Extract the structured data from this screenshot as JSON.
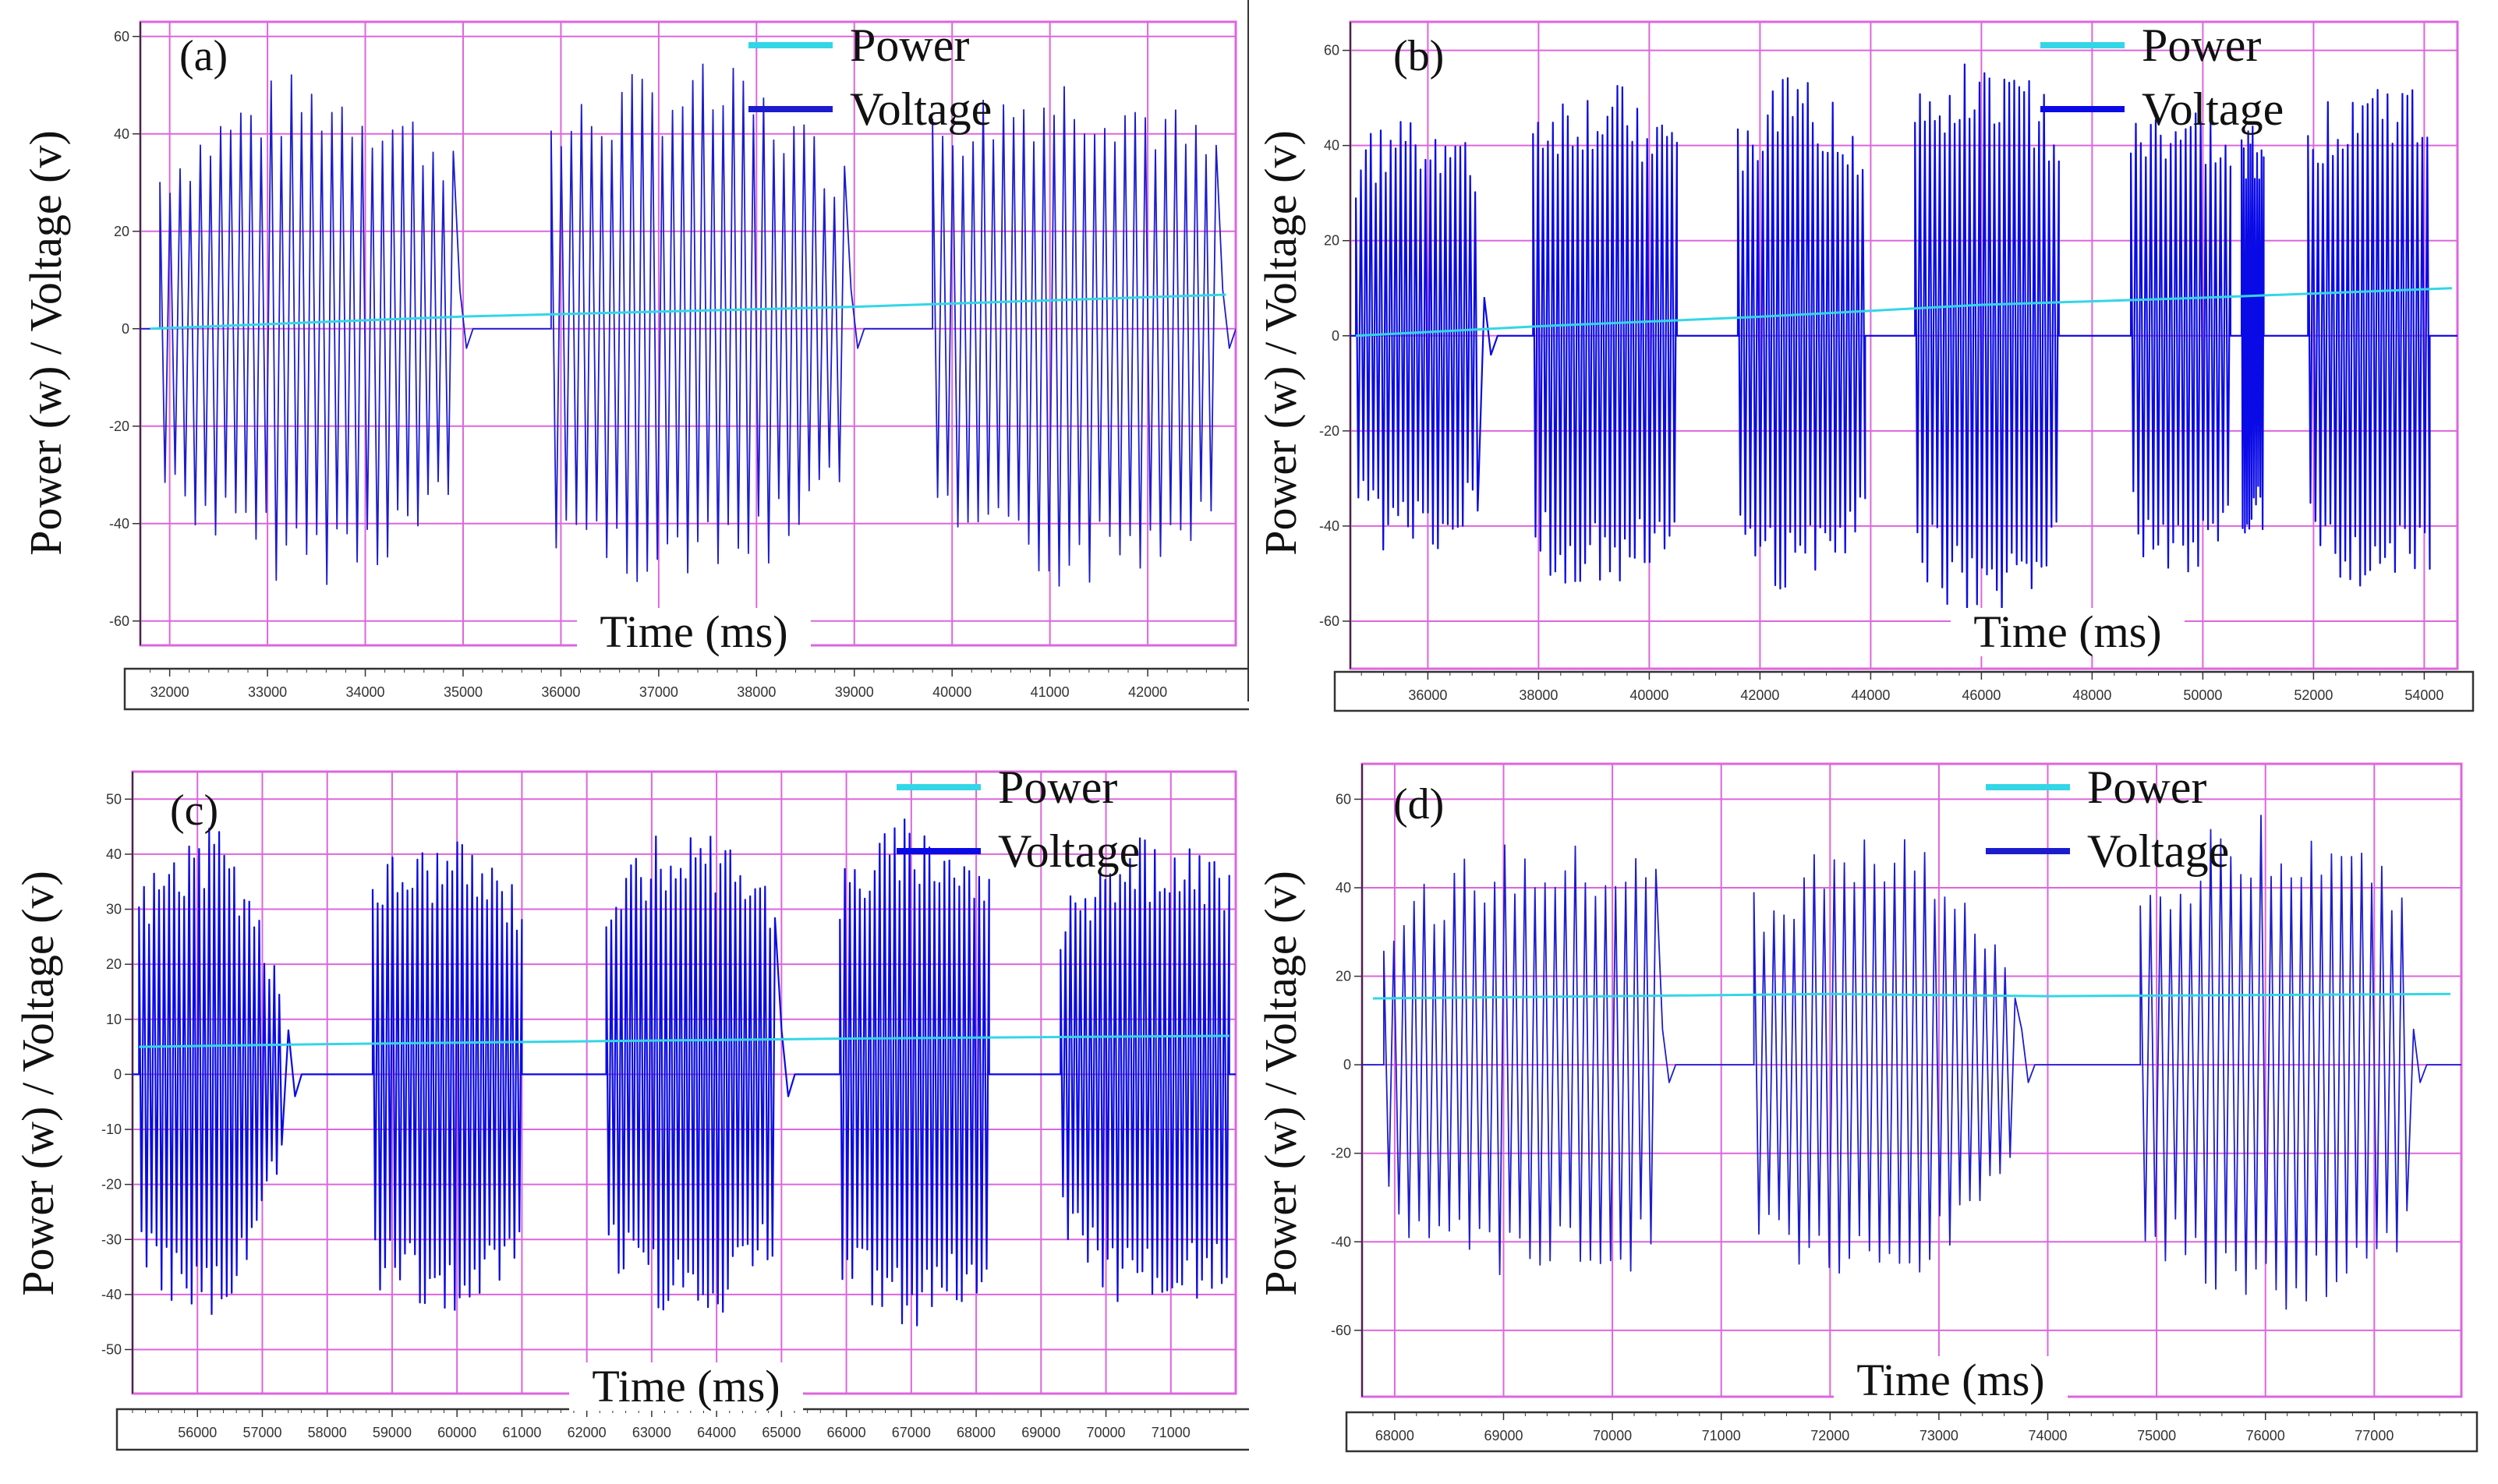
{
  "colors": {
    "power": "#33d6e6",
    "voltage": "#1c1ccf",
    "voltage_dense": "#0a0ae6",
    "grid": "#dd66dd",
    "frame": "#333333"
  },
  "chart_data": [
    {
      "type": "line",
      "panel_label": "(a)",
      "xlabel": "Time (ms)",
      "ylabel": "Power (w) / Voltage (v)",
      "xlim": [
        31700,
        42900
      ],
      "ylim": [
        -65,
        63
      ],
      "xticks": [
        32000,
        33000,
        34000,
        35000,
        36000,
        37000,
        38000,
        39000,
        40000,
        41000,
        42000
      ],
      "xtick_labels": [
        "32000",
        "33000",
        "34000",
        "35000",
        "36000",
        "37000",
        "38000",
        "39000",
        "40000",
        "41000",
        "42000"
      ],
      "yticks": [
        -60,
        -40,
        -20,
        0,
        20,
        40,
        60
      ],
      "ytick_labels": [
        "-60",
        "-40",
        "-20",
        "0",
        "20",
        "40",
        "60"
      ],
      "legend": [
        "Power",
        "Voltage"
      ],
      "series": [
        {
          "name": "Power",
          "x": [
            31800,
            35000,
            36000,
            39000,
            42800
          ],
          "values": [
            0,
            2.5,
            3,
            4.5,
            7
          ]
        },
        {
          "name": "Voltage",
          "bursts": [
            {
              "start": 31900,
              "end": 34900,
              "amp_start": 35,
              "amp_peak": 53,
              "amp_end": 40,
              "tail": "ring"
            },
            {
              "start": 35900,
              "end": 38900,
              "amp_start": 45,
              "amp_peak": 55,
              "amp_end": 35,
              "tail": "ring"
            },
            {
              "start": 39800,
              "end": 42700,
              "amp_start": 45,
              "amp_peak": 54,
              "amp_end": 40,
              "tail": "ring"
            }
          ]
        }
      ]
    },
    {
      "type": "line",
      "panel_label": "(b)",
      "xlabel": "Time (ms)",
      "ylabel": "Power (w) / Voltage (v)",
      "xlim": [
        34600,
        54600
      ],
      "ylim": [
        -70,
        66
      ],
      "xticks": [
        36000,
        38000,
        40000,
        42000,
        44000,
        46000,
        48000,
        50000,
        52000,
        54000
      ],
      "xtick_labels": [
        "36000",
        "38000",
        "40000",
        "42000",
        "44000",
        "46000",
        "48000",
        "50000",
        "52000",
        "54000"
      ],
      "yticks": [
        -60,
        -40,
        -20,
        0,
        20,
        40,
        60
      ],
      "ytick_labels": [
        "-60",
        "-40",
        "-20",
        "0",
        "20",
        "40",
        "60"
      ],
      "legend": [
        "Power",
        "Voltage"
      ],
      "series": [
        {
          "name": "Power",
          "x": [
            34700,
            38000,
            42000,
            46000,
            50000,
            54500
          ],
          "values": [
            0,
            2,
            4,
            6.5,
            8,
            10
          ]
        },
        {
          "name": "Voltage",
          "dense": true,
          "bursts": [
            {
              "start": 34700,
              "end": 36900,
              "amp_start": 40,
              "amp_peak": 48,
              "amp_end": 38,
              "tail": "ring"
            },
            {
              "start": 37900,
              "end": 40500,
              "amp_start": 50,
              "amp_peak": 53,
              "amp_end": 45,
              "tail": "flat"
            },
            {
              "start": 41600,
              "end": 43900,
              "amp_start": 45,
              "amp_peak": 55,
              "amp_end": 45,
              "tail": "flat"
            },
            {
              "start": 44800,
              "end": 47400,
              "amp_start": 50,
              "amp_peak": 61,
              "amp_end": 48,
              "tail": "flat"
            },
            {
              "start": 48700,
              "end": 50500,
              "amp_start": 45,
              "amp_peak": 50,
              "amp_end": 42,
              "tail": "flat"
            },
            {
              "start": 50700,
              "end": 51100,
              "amp_start": 42,
              "amp_peak": 45,
              "amp_end": 40,
              "tail": "flat"
            },
            {
              "start": 51900,
              "end": 54100,
              "amp_start": 45,
              "amp_peak": 56,
              "amp_end": 50,
              "tail": "flat"
            }
          ]
        }
      ]
    },
    {
      "type": "line",
      "panel_label": "(c)",
      "xlabel": "Time (ms)",
      "ylabel": "Power (w) / Voltage (v)",
      "xlim": [
        55000,
        72000
      ],
      "ylim": [
        -58,
        55
      ],
      "xticks": [
        56000,
        57000,
        58000,
        59000,
        60000,
        61000,
        62000,
        63000,
        64000,
        65000,
        66000,
        67000,
        68000,
        69000,
        70000,
        71000
      ],
      "xtick_labels": [
        "56000",
        "57000",
        "58000",
        "59000",
        "60000",
        "61000",
        "62000",
        "63000",
        "64000",
        "65000",
        "66000",
        "67000",
        "68000",
        "69000",
        "70000",
        "71000"
      ],
      "yticks": [
        -50,
        -40,
        -30,
        -20,
        -10,
        0,
        10,
        20,
        30,
        40,
        50
      ],
      "ytick_labels": [
        "-50",
        "-40",
        "-30",
        "-20",
        "-10",
        "0",
        "10",
        "20",
        "30",
        "40",
        "50"
      ],
      "legend": [
        "Power",
        "Voltage"
      ],
      "series": [
        {
          "name": "Power",
          "x": [
            55100,
            58000,
            62000,
            66000,
            71900
          ],
          "values": [
            5,
            5.5,
            6,
            6.5,
            7
          ]
        },
        {
          "name": "Voltage",
          "dense": true,
          "bursts": [
            {
              "start": 55100,
              "end": 57300,
              "amp_start": 35,
              "amp_peak": 45,
              "amp_end": 15,
              "tail": "ring"
            },
            {
              "start": 58700,
              "end": 61000,
              "amp_start": 40,
              "amp_peak": 43,
              "amp_end": 35,
              "tail": "flat"
            },
            {
              "start": 62300,
              "end": 64900,
              "amp_start": 35,
              "amp_peak": 46,
              "amp_end": 35,
              "tail": "ring"
            },
            {
              "start": 65900,
              "end": 68200,
              "amp_start": 38,
              "amp_peak": 47,
              "amp_end": 38,
              "tail": "flat"
            },
            {
              "start": 69300,
              "end": 71900,
              "amp_start": 30,
              "amp_peak": 43,
              "amp_end": 38,
              "tail": "flat"
            }
          ]
        }
      ]
    },
    {
      "type": "line",
      "panel_label": "(d)",
      "xlabel": "Time (ms)",
      "ylabel": "Power (w) / Voltage (v)",
      "xlim": [
        67700,
        77800
      ],
      "ylim": [
        -75,
        68
      ],
      "xticks": [
        68000,
        69000,
        70000,
        71000,
        72000,
        73000,
        74000,
        75000,
        76000,
        77000
      ],
      "xtick_labels": [
        "68000",
        "69000",
        "70000",
        "71000",
        "72000",
        "73000",
        "74000",
        "75000",
        "76000",
        "77000"
      ],
      "yticks": [
        -60,
        -40,
        -20,
        0,
        20,
        40,
        60
      ],
      "ytick_labels": [
        "-60",
        "-40",
        "-20",
        "0",
        "20",
        "40",
        "60"
      ],
      "legend": [
        "Power",
        "Voltage"
      ],
      "series": [
        {
          "name": "Power",
          "x": [
            67800,
            70000,
            72000,
            74000,
            77700
          ],
          "values": [
            15,
            15.5,
            16,
            15.5,
            16
          ]
        },
        {
          "name": "Voltage",
          "bursts": [
            {
              "start": 67900,
              "end": 70400,
              "amp_start": 35,
              "amp_peak": 50,
              "amp_end": 48,
              "tail": "ring"
            },
            {
              "start": 71300,
              "end": 73700,
              "amp_start": 40,
              "amp_peak": 52,
              "amp_end": 20,
              "tail": "ring"
            },
            {
              "start": 74850,
              "end": 77300,
              "amp_start": 40,
              "amp_peak": 58,
              "amp_end": 45,
              "tail": "ring"
            }
          ]
        }
      ]
    }
  ]
}
